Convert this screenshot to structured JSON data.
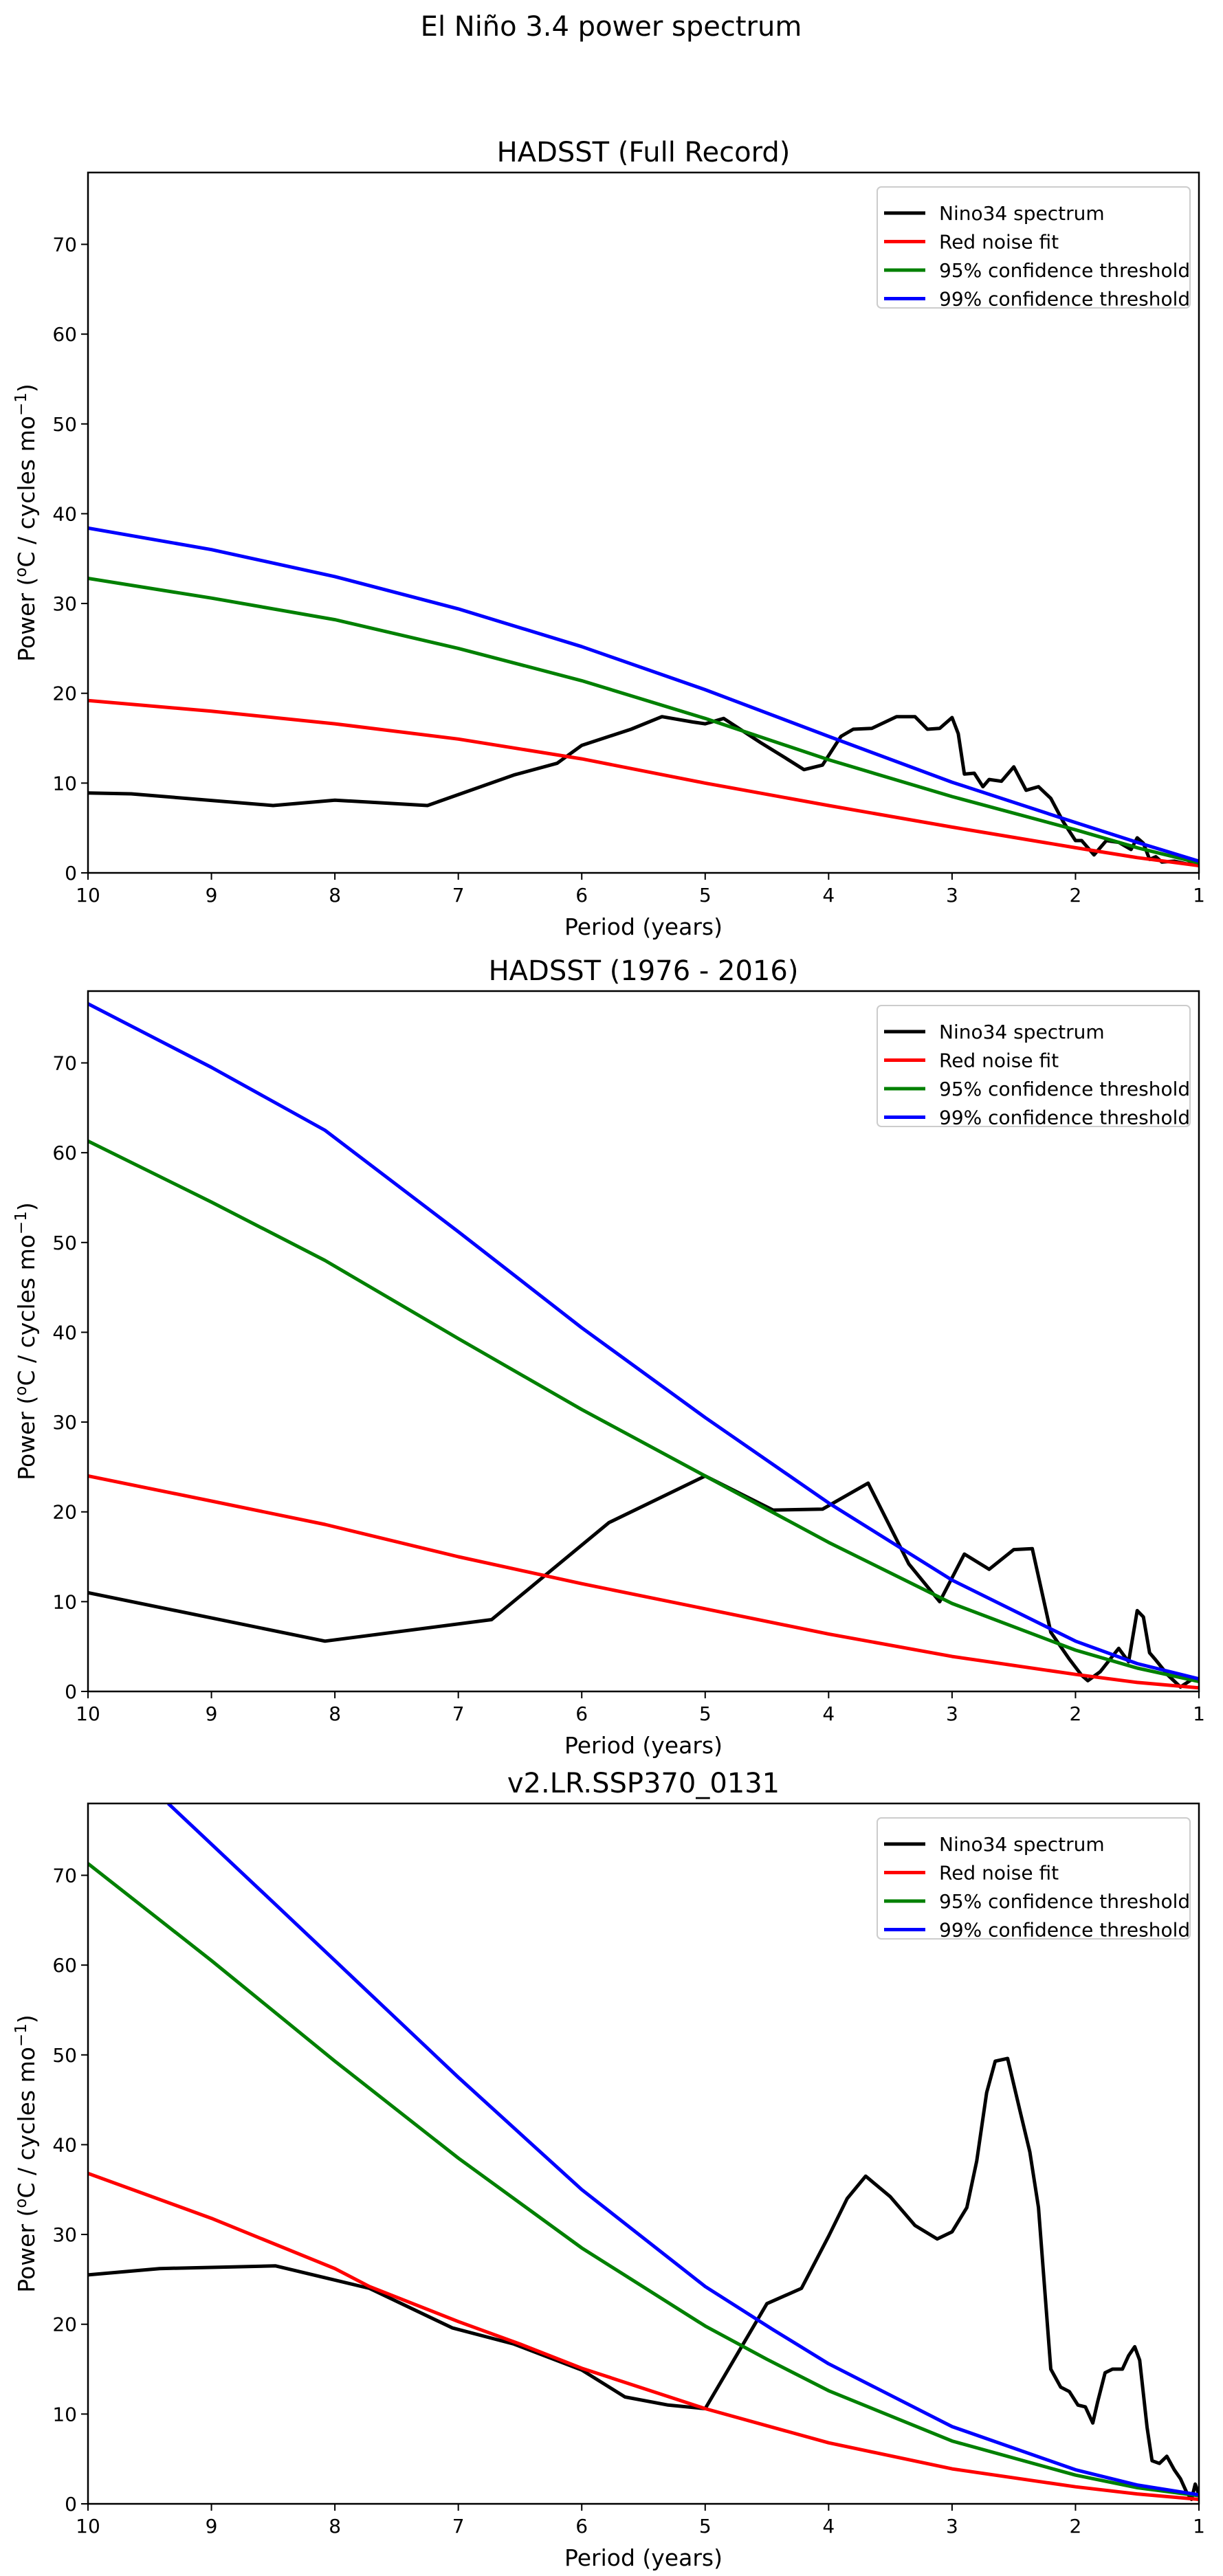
{
  "suptitle": "El Niño 3.4 power spectrum",
  "legend_labels": [
    "Nino34 spectrum",
    "Red noise fit",
    "95% confidence threshold",
    "99% confidence threshold"
  ],
  "colors": {
    "spectrum": "#000000",
    "red_noise": "#ff0000",
    "conf95": "#008000",
    "conf99": "#0000ff"
  },
  "chart_data": [
    {
      "type": "line",
      "title": "HADSST (Full Record)",
      "xlabel": "Period (years)",
      "ylabel": "Power (oC / cycles mo-1)",
      "xlim": [
        10,
        1
      ],
      "ylim": [
        0,
        78
      ],
      "xticks": [
        10,
        9,
        8,
        7,
        6,
        5,
        4,
        3,
        2,
        1
      ],
      "yticks": [
        0,
        10,
        20,
        30,
        40,
        50,
        60,
        70
      ],
      "legend": "top-right",
      "series": [
        {
          "name": "Nino34 spectrum",
          "x": [
            10,
            9.65,
            8.5,
            8,
            7.25,
            6.55,
            6.2,
            6.0,
            5.6,
            5.35,
            5.1,
            5.0,
            4.85,
            4.55,
            4.35,
            4.2,
            4.05,
            3.9,
            3.8,
            3.65,
            3.45,
            3.3,
            3.2,
            3.1,
            3.0,
            2.95,
            2.9,
            2.82,
            2.75,
            2.7,
            2.6,
            2.5,
            2.4,
            2.3,
            2.2,
            2.1,
            2.0,
            1.95,
            1.85,
            1.75,
            1.65,
            1.55,
            1.5,
            1.45,
            1.4,
            1.35,
            1.3,
            1.2,
            1.1,
            1.0
          ],
          "y": [
            8.9,
            8.8,
            7.5,
            8.1,
            7.5,
            10.9,
            12.2,
            14.2,
            16.0,
            17.4,
            16.8,
            16.6,
            17.2,
            14.5,
            12.8,
            11.5,
            12.0,
            15.2,
            16.0,
            16.1,
            17.4,
            17.4,
            16.0,
            16.1,
            17.3,
            15.5,
            11.0,
            11.1,
            9.6,
            10.4,
            10.2,
            11.8,
            9.2,
            9.6,
            8.3,
            5.7,
            3.6,
            3.6,
            2.0,
            3.6,
            3.4,
            2.6,
            3.9,
            3.3,
            1.5,
            1.8,
            1.2,
            1.3,
            1.0,
            1.0
          ]
        },
        {
          "name": "Red noise fit",
          "x": [
            10,
            9,
            8,
            7,
            6,
            5,
            4,
            3,
            2,
            1.5,
            1
          ],
          "y": [
            19.2,
            18.0,
            16.6,
            14.9,
            12.7,
            10.0,
            7.5,
            5.1,
            2.8,
            1.7,
            0.8
          ]
        },
        {
          "name": "95% confidence threshold",
          "x": [
            10,
            9,
            8,
            7,
            6,
            5,
            4,
            3,
            2,
            1.5,
            1
          ],
          "y": [
            32.8,
            30.6,
            28.2,
            25.0,
            21.4,
            17.2,
            12.6,
            8.5,
            4.8,
            2.8,
            1.1
          ]
        },
        {
          "name": "99% confidence threshold",
          "x": [
            10,
            9,
            8,
            7,
            6,
            5,
            4,
            3,
            2,
            1.5,
            1
          ],
          "y": [
            38.4,
            36.0,
            33.0,
            29.4,
            25.2,
            20.4,
            15.2,
            10.1,
            5.6,
            3.4,
            1.3
          ]
        }
      ]
    },
    {
      "type": "line",
      "title": "HADSST (1976 - 2016)",
      "xlabel": "Period (years)",
      "ylabel": "Power (oC / cycles mo-1)",
      "xlim": [
        10,
        1
      ],
      "ylim": [
        0,
        78
      ],
      "xticks": [
        10,
        9,
        8,
        7,
        6,
        5,
        4,
        3,
        2,
        1
      ],
      "yticks": [
        0,
        10,
        20,
        30,
        40,
        50,
        60,
        70
      ],
      "legend": "top-right",
      "series": [
        {
          "name": "Nino34 spectrum",
          "x": [
            10,
            8.08,
            6.73,
            5.78,
            5.0,
            4.45,
            4.05,
            3.68,
            3.35,
            3.1,
            2.9,
            2.7,
            2.5,
            2.35,
            2.2,
            2.05,
            1.95,
            1.9,
            1.8,
            1.65,
            1.57,
            1.5,
            1.45,
            1.4,
            1.35,
            1.25,
            1.15,
            1.05,
            1.0
          ],
          "y": [
            11.0,
            5.6,
            8.0,
            18.8,
            24.0,
            20.2,
            20.3,
            23.2,
            14.2,
            10.0,
            15.3,
            13.6,
            15.8,
            15.9,
            6.6,
            3.6,
            1.8,
            1.2,
            2.2,
            4.8,
            3.3,
            9.0,
            8.3,
            4.3,
            3.5,
            1.8,
            0.5,
            1.4,
            1.3
          ]
        },
        {
          "name": "Red noise fit",
          "x": [
            10,
            9,
            8.08,
            7,
            6,
            5,
            4,
            3,
            2,
            1.5,
            1
          ],
          "y": [
            24.0,
            21.2,
            18.6,
            15.0,
            12.0,
            9.2,
            6.4,
            3.9,
            1.9,
            1.0,
            0.4
          ]
        },
        {
          "name": "95% confidence threshold",
          "x": [
            10,
            9,
            8.08,
            7,
            6,
            5,
            4,
            3,
            2,
            1.5,
            1
          ],
          "y": [
            61.3,
            54.5,
            48.0,
            39.3,
            31.4,
            24.0,
            16.6,
            9.8,
            4.6,
            2.6,
            1.1
          ]
        },
        {
          "name": "99% confidence threshold",
          "x": [
            10.2,
            9,
            8.08,
            7,
            6,
            5,
            4,
            3,
            2,
            1.5,
            1
          ],
          "y": [
            78.0,
            69.5,
            62.5,
            51.2,
            40.5,
            30.5,
            21.0,
            12.4,
            5.6,
            3.1,
            1.4
          ]
        }
      ]
    },
    {
      "type": "line",
      "title": "v2.LR.SSP370_0131",
      "xlabel": "Period (years)",
      "ylabel": "Power (oC / cycles mo-1)",
      "xlim": [
        10,
        1
      ],
      "ylim": [
        0,
        78
      ],
      "xticks": [
        10,
        9,
        8,
        7,
        6,
        5,
        4,
        3,
        2,
        1
      ],
      "yticks": [
        0,
        10,
        20,
        30,
        40,
        50,
        60,
        70
      ],
      "legend": "top-right",
      "series": [
        {
          "name": "Nino34 spectrum",
          "x": [
            10,
            9.42,
            8.48,
            7.72,
            7.05,
            6.55,
            6.0,
            5.65,
            5.3,
            5.0,
            4.5,
            4.22,
            4.0,
            3.85,
            3.7,
            3.5,
            3.3,
            3.12,
            3.0,
            2.88,
            2.8,
            2.72,
            2.65,
            2.55,
            2.45,
            2.37,
            2.3,
            2.2,
            2.12,
            2.05,
            1.98,
            1.92,
            1.86,
            1.82,
            1.76,
            1.7,
            1.62,
            1.57,
            1.52,
            1.48,
            1.42,
            1.38,
            1.32,
            1.26,
            1.2,
            1.15,
            1.1,
            1.06,
            1.03,
            1.0
          ],
          "y": [
            25.5,
            26.2,
            26.5,
            24.0,
            19.6,
            17.8,
            14.9,
            11.9,
            11.0,
            10.6,
            22.3,
            24.0,
            29.8,
            34.0,
            36.5,
            34.2,
            31.0,
            29.5,
            30.3,
            33.0,
            38.2,
            45.8,
            49.3,
            49.6,
            43.8,
            39.2,
            33.0,
            15.0,
            13.0,
            12.5,
            11.0,
            10.8,
            9.0,
            11.4,
            14.6,
            15.0,
            15.0,
            16.5,
            17.5,
            16.0,
            8.5,
            4.8,
            4.5,
            5.3,
            3.8,
            2.8,
            1.3,
            0.5,
            2.2,
            1.0
          ]
        },
        {
          "name": "Red noise fit",
          "x": [
            10,
            9,
            8,
            7.72,
            7,
            6.5,
            6,
            5,
            4,
            3,
            2,
            1.5,
            1
          ],
          "y": [
            36.8,
            31.8,
            26.2,
            24.2,
            20.3,
            17.8,
            15.1,
            10.6,
            6.8,
            3.9,
            1.9,
            1.1,
            0.5
          ]
        },
        {
          "name": "95% confidence threshold",
          "x": [
            10,
            9,
            8,
            7,
            6,
            5,
            4.5,
            4,
            3,
            2,
            1.5,
            1
          ],
          "y": [
            71.3,
            60.5,
            49.3,
            38.5,
            28.5,
            19.8,
            16.1,
            12.6,
            7.0,
            3.2,
            1.8,
            0.9
          ]
        },
        {
          "name": "99% confidence threshold",
          "x": [
            9.35,
            8.5,
            8,
            7,
            6,
            5,
            4.45,
            4,
            3,
            2,
            1.5,
            1
          ],
          "y": [
            78.0,
            67.0,
            60.5,
            47.5,
            35.0,
            24.2,
            19.4,
            15.6,
            8.6,
            3.8,
            2.1,
            1.0
          ]
        }
      ]
    }
  ]
}
